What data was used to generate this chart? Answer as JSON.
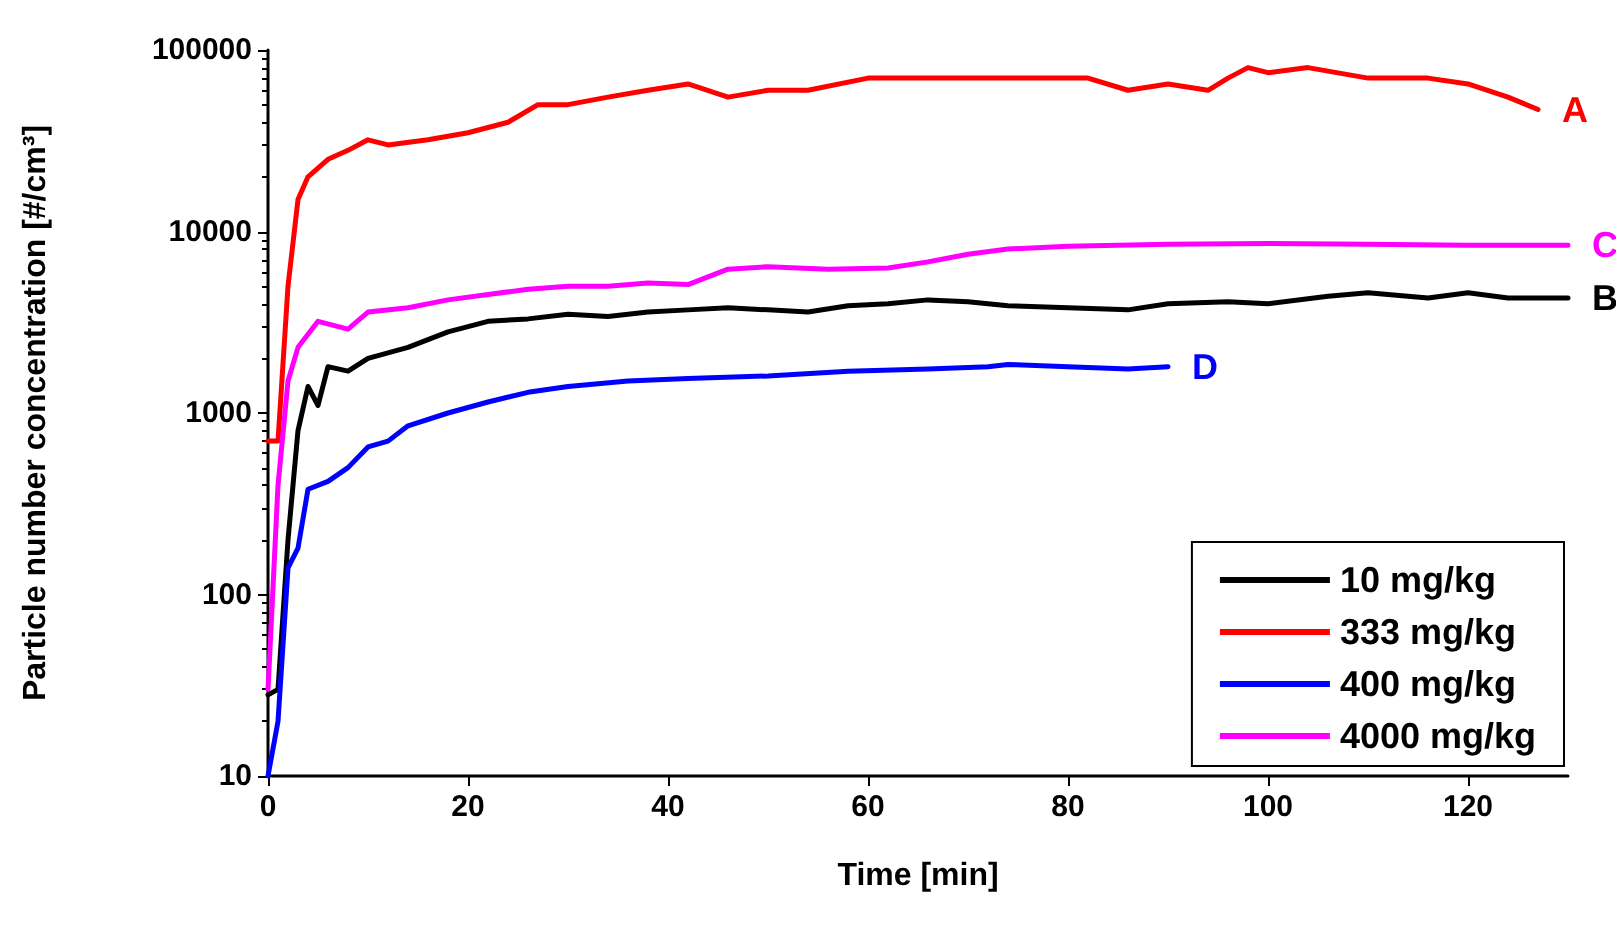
{
  "chart_data": {
    "type": "line",
    "xlabel": "Time [min]",
    "ylabel": "Particle number concentration [#/cm³]",
    "log": "y",
    "xlim": [
      0,
      130
    ],
    "xticks": [
      0,
      20,
      40,
      60,
      80,
      100,
      120
    ],
    "ylim": [
      10,
      100000
    ],
    "yticks": [
      10,
      100,
      1000,
      10000,
      100000
    ],
    "grid": false,
    "legend": "bottom right",
    "marker": "none",
    "line_style": "solid",
    "series": [
      {
        "name": "10 mg/kg",
        "color": "#000000",
        "x": [
          0,
          1,
          2,
          3,
          4,
          5,
          6,
          8,
          10,
          14,
          18,
          22,
          26,
          30,
          34,
          38,
          42,
          46,
          50,
          54,
          58,
          62,
          66,
          70,
          74,
          80,
          86,
          90,
          96,
          100,
          106,
          110,
          116,
          120,
          124,
          130
        ],
        "values": [
          28,
          30,
          200,
          800,
          1400,
          1100,
          1800,
          1700,
          2000,
          2300,
          2800,
          3200,
          3300,
          3500,
          3400,
          3600,
          3700,
          3800,
          3700,
          3600,
          3900,
          4000,
          4200,
          4100,
          3900,
          3800,
          3700,
          4000,
          4100,
          4000,
          4400,
          4600,
          4300,
          4600,
          4300,
          4300
        ]
      },
      {
        "name": "333 mg/kg",
        "color": "#ff0000",
        "x": [
          0,
          1,
          2,
          3,
          4,
          6,
          8,
          10,
          12,
          16,
          20,
          24,
          27,
          30,
          34,
          38,
          42,
          46,
          50,
          54,
          60,
          66,
          70,
          74,
          78,
          82,
          86,
          90,
          94,
          96,
          98,
          100,
          104,
          110,
          116,
          120,
          124,
          127
        ],
        "values": [
          700,
          700,
          5000,
          15000,
          20000,
          25000,
          28000,
          32000,
          30000,
          32000,
          35000,
          40000,
          50000,
          50000,
          55000,
          60000,
          65000,
          55000,
          60000,
          60000,
          70000,
          70000,
          70000,
          70000,
          70000,
          70000,
          60000,
          65000,
          60000,
          70000,
          80000,
          75000,
          80000,
          70000,
          70000,
          65000,
          55000,
          47000
        ]
      },
      {
        "name": "400 mg/kg",
        "color": "#0000ff",
        "x": [
          0,
          1,
          2,
          3,
          4,
          6,
          8,
          10,
          12,
          14,
          18,
          22,
          26,
          30,
          36,
          42,
          50,
          58,
          66,
          72,
          74,
          80,
          86,
          90
        ],
        "values": [
          10,
          20,
          140,
          180,
          380,
          420,
          500,
          650,
          700,
          850,
          1000,
          1150,
          1300,
          1400,
          1500,
          1550,
          1600,
          1700,
          1750,
          1800,
          1850,
          1800,
          1750,
          1800
        ]
      },
      {
        "name": "4000 mg/kg",
        "color": "#ff00ff",
        "x": [
          0,
          1,
          2,
          3,
          5,
          8,
          10,
          14,
          18,
          22,
          26,
          30,
          34,
          38,
          42,
          46,
          50,
          56,
          62,
          66,
          70,
          74,
          80,
          90,
          100,
          110,
          120,
          130
        ],
        "values": [
          30,
          400,
          1500,
          2300,
          3200,
          2900,
          3600,
          3800,
          4200,
          4500,
          4800,
          5000,
          5000,
          5200,
          5100,
          6200,
          6400,
          6200,
          6300,
          6800,
          7500,
          8000,
          8300,
          8500,
          8600,
          8500,
          8400,
          8400
        ]
      }
    ],
    "annotations": [
      {
        "text": "A",
        "x": 127,
        "y": 47000
      },
      {
        "text": "B",
        "x": 130,
        "y": 4300
      },
      {
        "text": "C",
        "x": 130,
        "y": 8400
      },
      {
        "text": "D",
        "x": 90,
        "y": 1800
      }
    ]
  }
}
